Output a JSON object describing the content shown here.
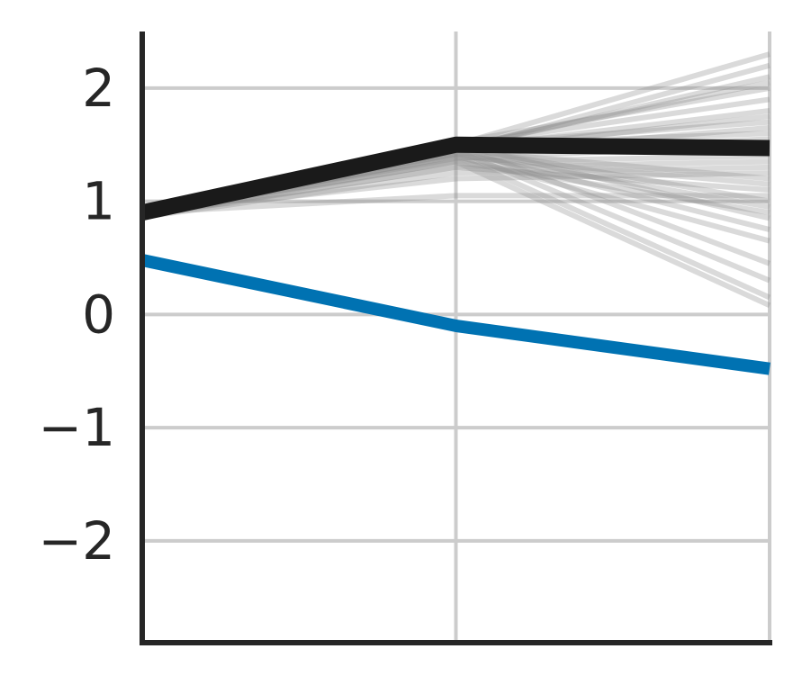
{
  "chart_data": {
    "type": "line",
    "title": "",
    "xlabel": "",
    "ylabel": "",
    "x": [
      0,
      1,
      2
    ],
    "xlim": [
      0,
      2
    ],
    "ylim": [
      -2.9,
      2.5
    ],
    "yticks": [
      2,
      1,
      0,
      -1,
      -2
    ],
    "ytick_labels": [
      "2",
      "1",
      "0",
      "−1",
      "−2"
    ],
    "grid": true,
    "legend": "none",
    "colors": {
      "highlight": "#1a1a1a",
      "reference": "#0072b2",
      "samples": "#8c8c8c",
      "grid": "#cccccc",
      "axis": "#262626"
    },
    "series": [
      {
        "role": "reference",
        "values": [
          0.48,
          -0.1,
          -0.48
        ]
      },
      {
        "role": "highlight",
        "values": [
          0.9,
          1.5,
          1.47
        ]
      }
    ],
    "samples": [
      [
        0.88,
        1.5,
        2.3
      ],
      [
        0.9,
        1.45,
        2.2
      ],
      [
        0.87,
        1.48,
        2.05
      ],
      [
        0.89,
        1.52,
        2.0
      ],
      [
        0.9,
        1.5,
        1.9
      ],
      [
        0.86,
        1.47,
        1.8
      ],
      [
        0.88,
        1.45,
        1.75
      ],
      [
        0.9,
        1.42,
        1.65
      ],
      [
        0.87,
        1.5,
        1.6
      ],
      [
        0.89,
        1.38,
        1.5
      ],
      [
        0.9,
        1.35,
        1.4
      ],
      [
        0.88,
        1.3,
        1.35
      ],
      [
        0.86,
        1.25,
        1.3
      ],
      [
        0.9,
        1.2,
        1.25
      ],
      [
        0.88,
        1.45,
        1.2
      ],
      [
        0.89,
        1.4,
        1.15
      ],
      [
        0.87,
        1.3,
        1.1
      ],
      [
        0.9,
        1.05,
        1.05
      ],
      [
        0.88,
        1.48,
        1.0
      ],
      [
        0.89,
        1.42,
        0.95
      ],
      [
        0.87,
        1.35,
        0.9
      ],
      [
        0.9,
        1.5,
        0.85
      ],
      [
        0.88,
        1.45,
        0.75
      ],
      [
        0.89,
        1.4,
        0.65
      ],
      [
        0.87,
        1.5,
        0.45
      ],
      [
        0.9,
        1.45,
        0.3
      ],
      [
        0.88,
        1.4,
        0.15
      ],
      [
        0.89,
        1.35,
        0.08
      ],
      [
        0.87,
        1.47,
        1.45
      ],
      [
        0.9,
        1.5,
        1.7
      ],
      [
        0.88,
        1.44,
        1.55
      ],
      [
        0.89,
        1.46,
        2.1
      ]
    ]
  }
}
